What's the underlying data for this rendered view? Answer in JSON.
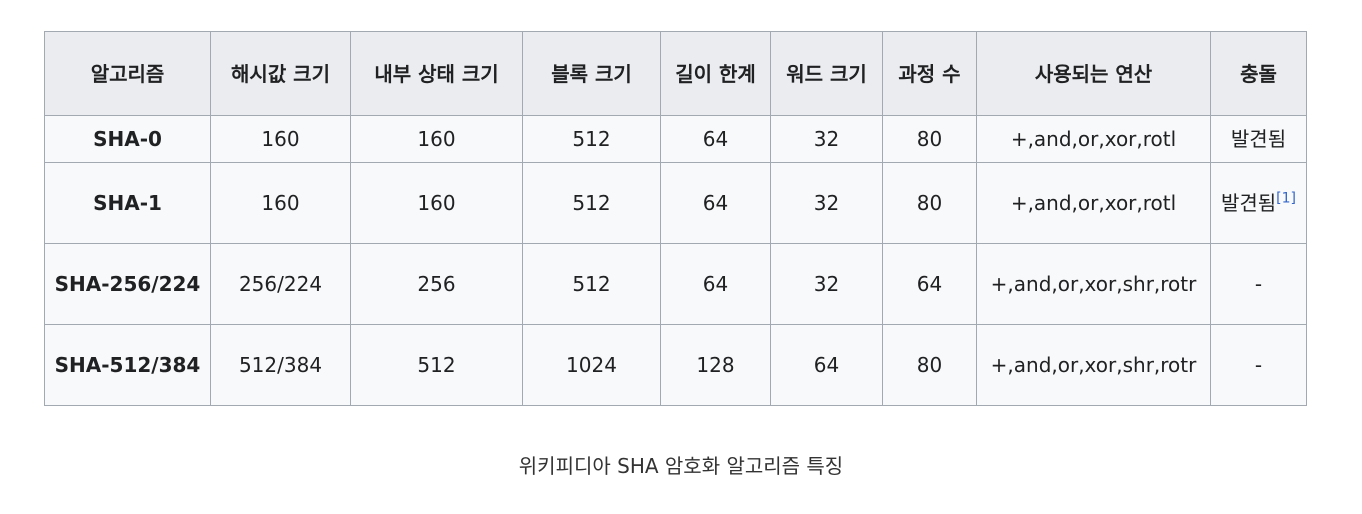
{
  "table": {
    "headers": [
      "알고리즘",
      "해시값 크기",
      "내부 상태 크기",
      "블록 크기",
      "길이 한계",
      "워드 크기",
      "과정 수",
      "사용되는 연산",
      "충돌"
    ],
    "rows": [
      [
        "SHA-0",
        "160",
        "160",
        "512",
        "64",
        "32",
        "80",
        "+,and,or,xor,rotl",
        "발견됨"
      ],
      [
        "SHA-1",
        "160",
        "160",
        "512",
        "64",
        "32",
        "80",
        "+,and,or,xor,rotl",
        "발견됨"
      ],
      [
        "SHA-256/224",
        "256/224",
        "256",
        "512",
        "64",
        "32",
        "64",
        "+,and,or,xor,shr,rotr",
        "-"
      ],
      [
        "SHA-512/384",
        "512/384",
        "512",
        "1024",
        "128",
        "64",
        "80",
        "+,and,or,xor,shr,rotr",
        "-"
      ]
    ],
    "footnote_ref": "[1]"
  },
  "caption": "위키피디아 SHA 암호화 알고리즘 특징"
}
